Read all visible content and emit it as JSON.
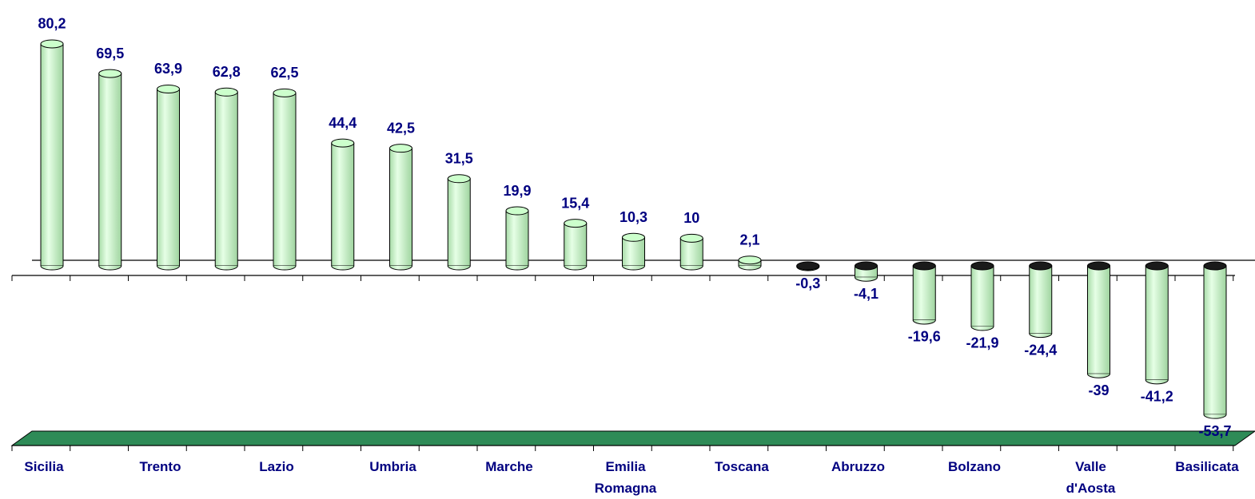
{
  "chart_data": {
    "type": "bar",
    "categories": [
      "Sicilia",
      null,
      "Trento",
      null,
      "Lazio",
      null,
      "Umbria",
      null,
      "Marche",
      null,
      "Emilia Romagna",
      null,
      "Toscana",
      null,
      "Abruzzo",
      null,
      "Bolzano",
      null,
      "Valle d'Aosta",
      null,
      "Basilicata"
    ],
    "values": [
      80.2,
      69.5,
      63.9,
      62.8,
      62.5,
      44.4,
      42.5,
      31.5,
      19.9,
      15.4,
      10.3,
      10,
      2.1,
      -0.3,
      -4.1,
      -19.6,
      -21.9,
      -24.4,
      -39,
      -41.2,
      -53.7
    ],
    "value_labels": [
      "80,2",
      "69,5",
      "63,9",
      "62,8",
      "62,5",
      "44,4",
      "42,5",
      "31,5",
      "19,9",
      "15,4",
      "10,3",
      "10",
      "2,1",
      "-0,3",
      "-4,1",
      "-19,6",
      "-21,9",
      "-24,4",
      "-39",
      "-41,2",
      "-53,7"
    ],
    "color": "#ccffcc",
    "ylim": [
      -60,
      90
    ]
  }
}
